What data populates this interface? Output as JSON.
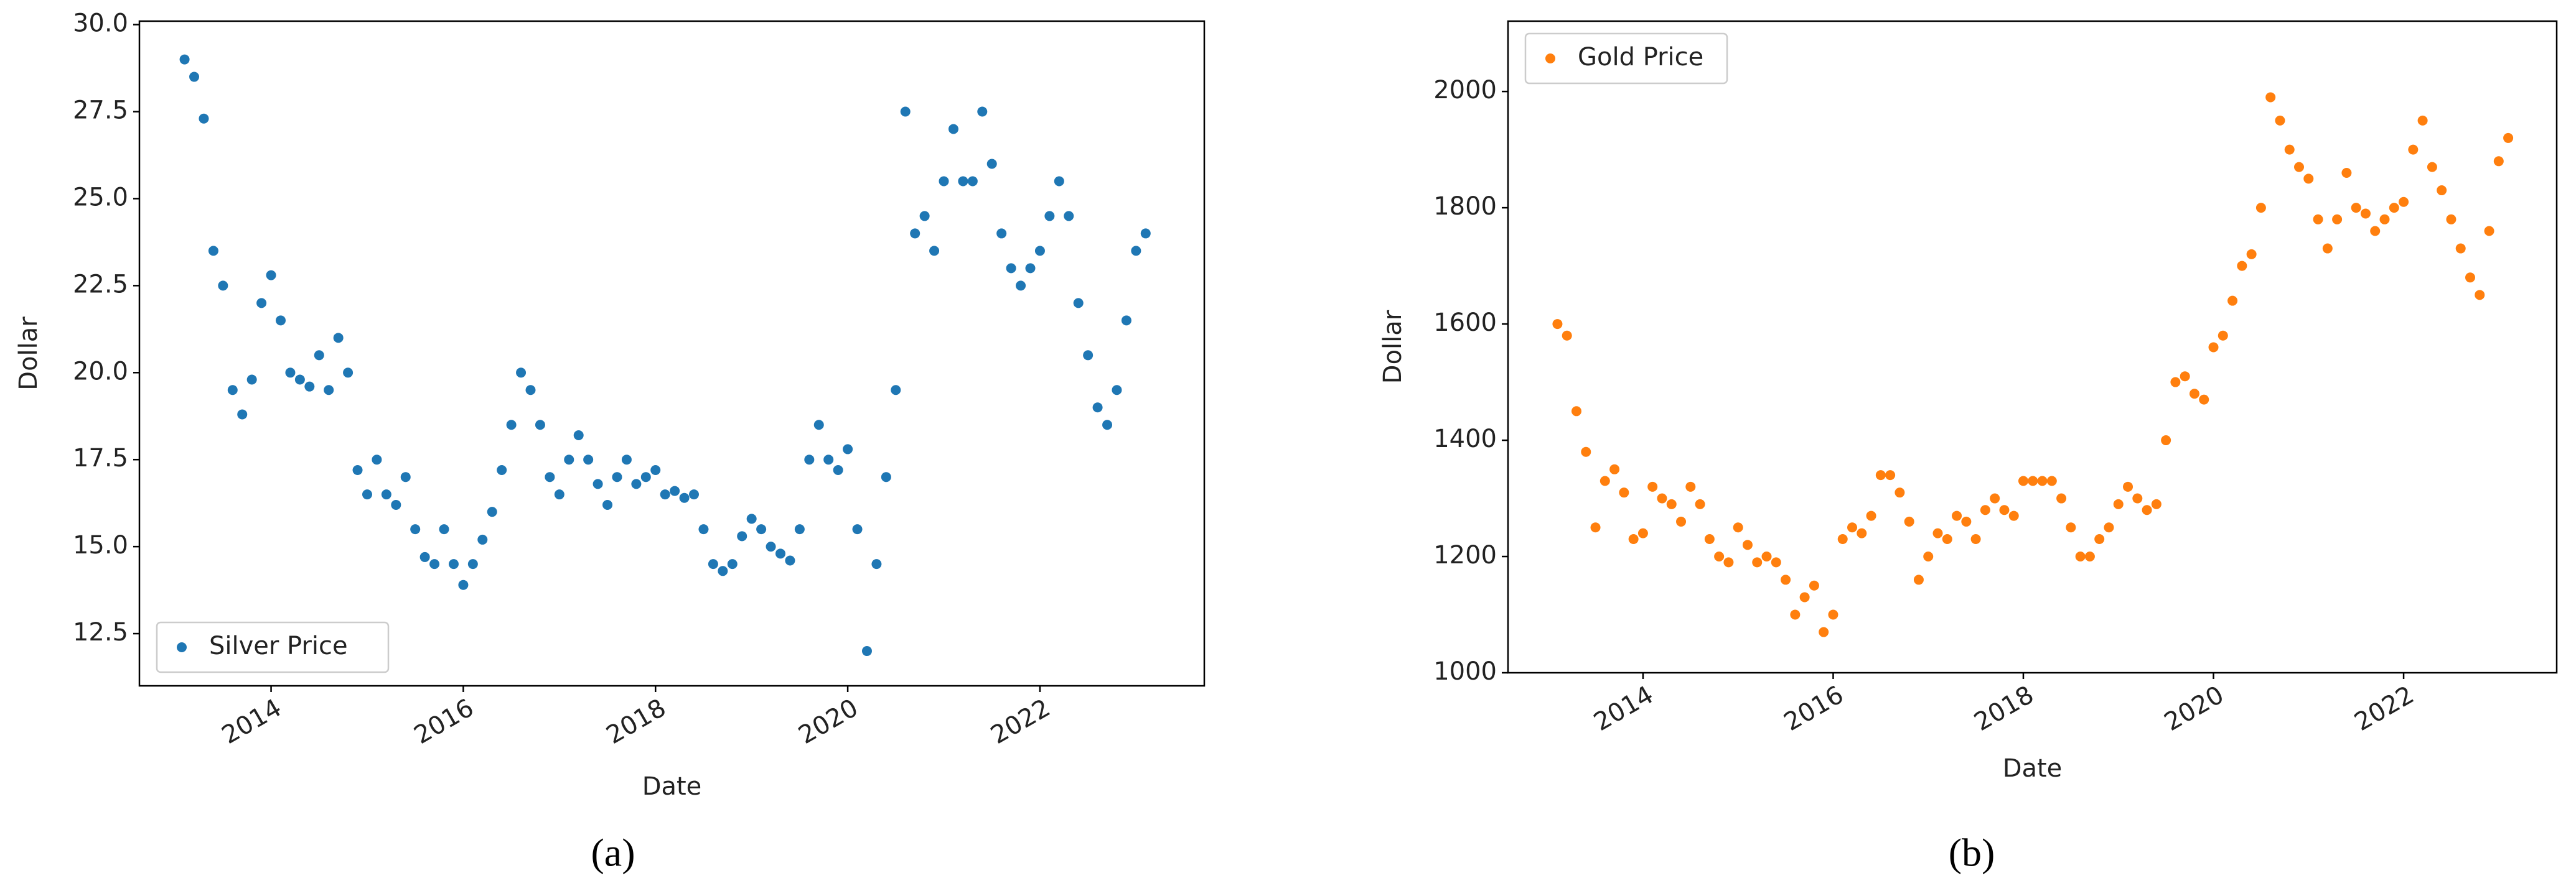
{
  "chart_data": [
    {
      "type": "scatter",
      "panel_label": "(a)",
      "x_label": "Date",
      "y_label": "Dollar",
      "x": [
        2013.1,
        2013.2,
        2013.3,
        2013.4,
        2013.5,
        2013.6,
        2013.7,
        2013.8,
        2013.9,
        2014.0,
        2014.1,
        2014.2,
        2014.3,
        2014.4,
        2014.5,
        2014.6,
        2014.7,
        2014.8,
        2014.9,
        2015.0,
        2015.1,
        2015.2,
        2015.3,
        2015.4,
        2015.5,
        2015.6,
        2015.7,
        2015.8,
        2015.9,
        2016.0,
        2016.1,
        2016.2,
        2016.3,
        2016.4,
        2016.5,
        2016.6,
        2016.7,
        2016.8,
        2016.9,
        2017.0,
        2017.1,
        2017.2,
        2017.3,
        2017.4,
        2017.5,
        2017.6,
        2017.7,
        2017.8,
        2017.9,
        2018.0,
        2018.1,
        2018.2,
        2018.3,
        2018.4,
        2018.5,
        2018.6,
        2018.7,
        2018.8,
        2018.9,
        2019.0,
        2019.1,
        2019.2,
        2019.3,
        2019.4,
        2019.5,
        2019.6,
        2019.7,
        2019.8,
        2019.9,
        2020.0,
        2020.1,
        2020.2,
        2020.3,
        2020.4,
        2020.5,
        2020.6,
        2020.7,
        2020.8,
        2020.9,
        2021.0,
        2021.1,
        2021.2,
        2021.3,
        2021.4,
        2021.5,
        2021.6,
        2021.7,
        2021.8,
        2021.9,
        2022.0,
        2022.1,
        2022.2,
        2022.3,
        2022.4,
        2022.5,
        2022.6,
        2022.7,
        2022.8,
        2022.9,
        2023.0,
        2023.1
      ],
      "series": [
        {
          "name": "Silver Price",
          "color": "#1f77b4",
          "values": [
            29.0,
            28.5,
            27.3,
            23.5,
            22.5,
            19.5,
            18.8,
            19.8,
            22.0,
            22.8,
            21.5,
            20.0,
            19.8,
            19.6,
            20.5,
            19.5,
            21.0,
            20.0,
            17.2,
            16.5,
            17.5,
            16.5,
            16.2,
            17.0,
            15.5,
            14.7,
            14.5,
            15.5,
            14.5,
            13.9,
            14.5,
            15.2,
            16.0,
            17.2,
            18.5,
            20.0,
            19.5,
            18.5,
            17.0,
            16.5,
            17.5,
            18.2,
            17.5,
            16.8,
            16.2,
            17.0,
            17.5,
            16.8,
            17.0,
            17.2,
            16.5,
            16.6,
            16.4,
            16.5,
            15.5,
            14.5,
            14.3,
            14.5,
            15.3,
            15.8,
            15.5,
            15.0,
            14.8,
            14.6,
            15.5,
            17.5,
            18.5,
            17.5,
            17.2,
            17.8,
            15.5,
            12.0,
            14.5,
            17.0,
            19.5,
            27.5,
            24.0,
            24.5,
            23.5,
            25.5,
            27.0,
            25.5,
            25.5,
            27.5,
            26.0,
            24.0,
            23.0,
            22.5,
            23.0,
            23.5,
            24.5,
            25.5,
            24.5,
            22.0,
            20.5,
            19.0,
            18.5,
            19.5,
            21.5,
            23.5,
            24.0
          ]
        }
      ],
      "xlim": [
        2012.63,
        2023.71
      ],
      "xticks": [
        2014,
        2016,
        2018,
        2020,
        2022
      ],
      "ylim": [
        11.0,
        30.1
      ],
      "yticks": [
        12.5,
        {
          "value": 15,
          "label": "15.0"
        },
        17.5,
        {
          "value": 20,
          "label": "20.0"
        },
        22.5,
        {
          "value": 25,
          "label": "25.0"
        },
        27.5,
        {
          "value": 30,
          "label": "30.0"
        }
      ],
      "legend": "lower left"
    },
    {
      "type": "scatter",
      "panel_label": "(b)",
      "x_label": "Date",
      "y_label": "Dollar",
      "x": [
        2013.1,
        2013.2,
        2013.3,
        2013.4,
        2013.5,
        2013.6,
        2013.7,
        2013.8,
        2013.9,
        2014.0,
        2014.1,
        2014.2,
        2014.3,
        2014.4,
        2014.5,
        2014.6,
        2014.7,
        2014.8,
        2014.9,
        2015.0,
        2015.1,
        2015.2,
        2015.3,
        2015.4,
        2015.5,
        2015.6,
        2015.7,
        2015.8,
        2015.9,
        2016.0,
        2016.1,
        2016.2,
        2016.3,
        2016.4,
        2016.5,
        2016.6,
        2016.7,
        2016.8,
        2016.9,
        2017.0,
        2017.1,
        2017.2,
        2017.3,
        2017.4,
        2017.5,
        2017.6,
        2017.7,
        2017.8,
        2017.9,
        2018.0,
        2018.1,
        2018.2,
        2018.3,
        2018.4,
        2018.5,
        2018.6,
        2018.7,
        2018.8,
        2018.9,
        2019.0,
        2019.1,
        2019.2,
        2019.3,
        2019.4,
        2019.5,
        2019.6,
        2019.7,
        2019.8,
        2019.9,
        2020.0,
        2020.1,
        2020.2,
        2020.3,
        2020.4,
        2020.5,
        2020.6,
        2020.7,
        2020.8,
        2020.9,
        2021.0,
        2021.1,
        2021.2,
        2021.3,
        2021.4,
        2021.5,
        2021.6,
        2021.7,
        2021.8,
        2021.9,
        2022.0,
        2022.1,
        2022.2,
        2022.3,
        2022.4,
        2022.5,
        2022.6,
        2022.7,
        2022.8,
        2022.9,
        2023.0,
        2023.1
      ],
      "series": [
        {
          "name": "Gold Price",
          "color": "#ff7f0e",
          "values": [
            1600,
            1580,
            1450,
            1380,
            1250,
            1330,
            1350,
            1310,
            1230,
            1240,
            1320,
            1300,
            1290,
            1260,
            1320,
            1290,
            1230,
            1200,
            1190,
            1250,
            1220,
            1190,
            1200,
            1190,
            1160,
            1100,
            1130,
            1150,
            1070,
            1100,
            1230,
            1250,
            1240,
            1270,
            1340,
            1340,
            1310,
            1260,
            1160,
            1200,
            1240,
            1230,
            1270,
            1260,
            1230,
            1280,
            1300,
            1280,
            1270,
            1330,
            1330,
            1330,
            1330,
            1300,
            1250,
            1200,
            1200,
            1230,
            1250,
            1290,
            1320,
            1300,
            1280,
            1290,
            1400,
            1500,
            1510,
            1480,
            1470,
            1560,
            1580,
            1640,
            1700,
            1720,
            1800,
            1990,
            1950,
            1900,
            1870,
            1850,
            1780,
            1730,
            1780,
            1860,
            1800,
            1790,
            1760,
            1780,
            1800,
            1810,
            1900,
            1950,
            1870,
            1830,
            1780,
            1730,
            1680,
            1650,
            1760,
            1880,
            1920
          ]
        }
      ],
      "xlim": [
        2012.58,
        2023.61
      ],
      "xticks": [
        2014,
        2016,
        2018,
        2020,
        2022
      ],
      "ylim": [
        1000,
        2121
      ],
      "yticks": [
        1000,
        1200,
        1400,
        1600,
        1800,
        2000
      ],
      "legend": "upper left"
    }
  ]
}
